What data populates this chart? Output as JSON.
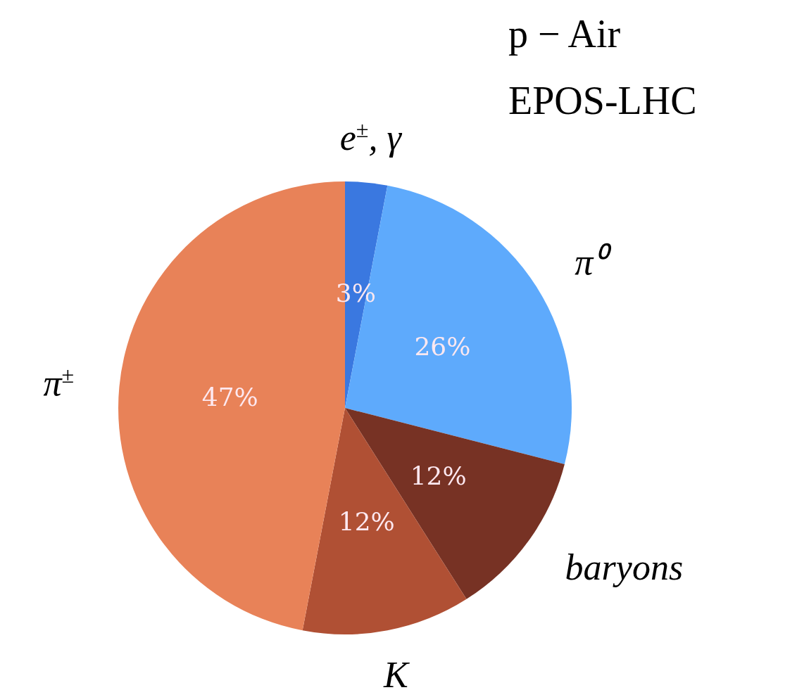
{
  "chart_data": {
    "type": "pie",
    "annotations": [
      "p − Air",
      "EPOS-LHC"
    ],
    "categories": [
      "e$^{±}$, γ",
      "π⁰",
      "baryons",
      "K",
      "π$^{±}$"
    ],
    "values": [
      3,
      26,
      12,
      12,
      47
    ],
    "value_labels": [
      "3%",
      "26%",
      "12%",
      "12%",
      "47%"
    ],
    "colors": [
      "#3a78e0",
      "#5eaafc",
      "#773224",
      "#b05034",
      "#e88258"
    ],
    "legend": false
  }
}
